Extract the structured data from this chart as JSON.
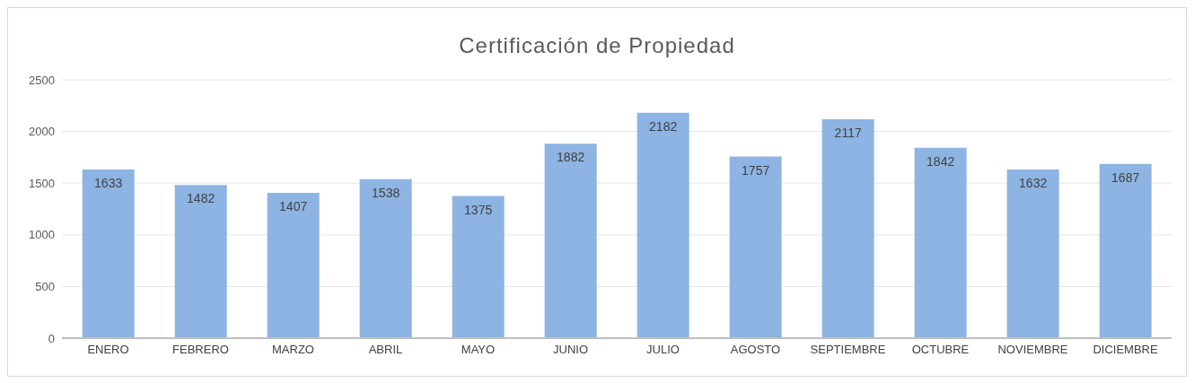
{
  "chart_data": {
    "type": "bar",
    "title": "Certificación de Propiedad",
    "categories": [
      "ENERO",
      "FEBRERO",
      "MARZO",
      "ABRIL",
      "MAYO",
      "JUNIO",
      "JULIO",
      "AGOSTO",
      "SEPTIEMBRE",
      "OCTUBRE",
      "NOVIEMBRE",
      "DICIEMBRE"
    ],
    "values": [
      1633,
      1482,
      1407,
      1538,
      1375,
      1882,
      2182,
      1757,
      2117,
      1842,
      1632,
      1687
    ],
    "color": "#8db4e2",
    "ylim": [
      0,
      2500
    ],
    "yticks": [
      0,
      500,
      1000,
      1500,
      2000,
      2500
    ],
    "grid": "y",
    "data_labels": true
  }
}
